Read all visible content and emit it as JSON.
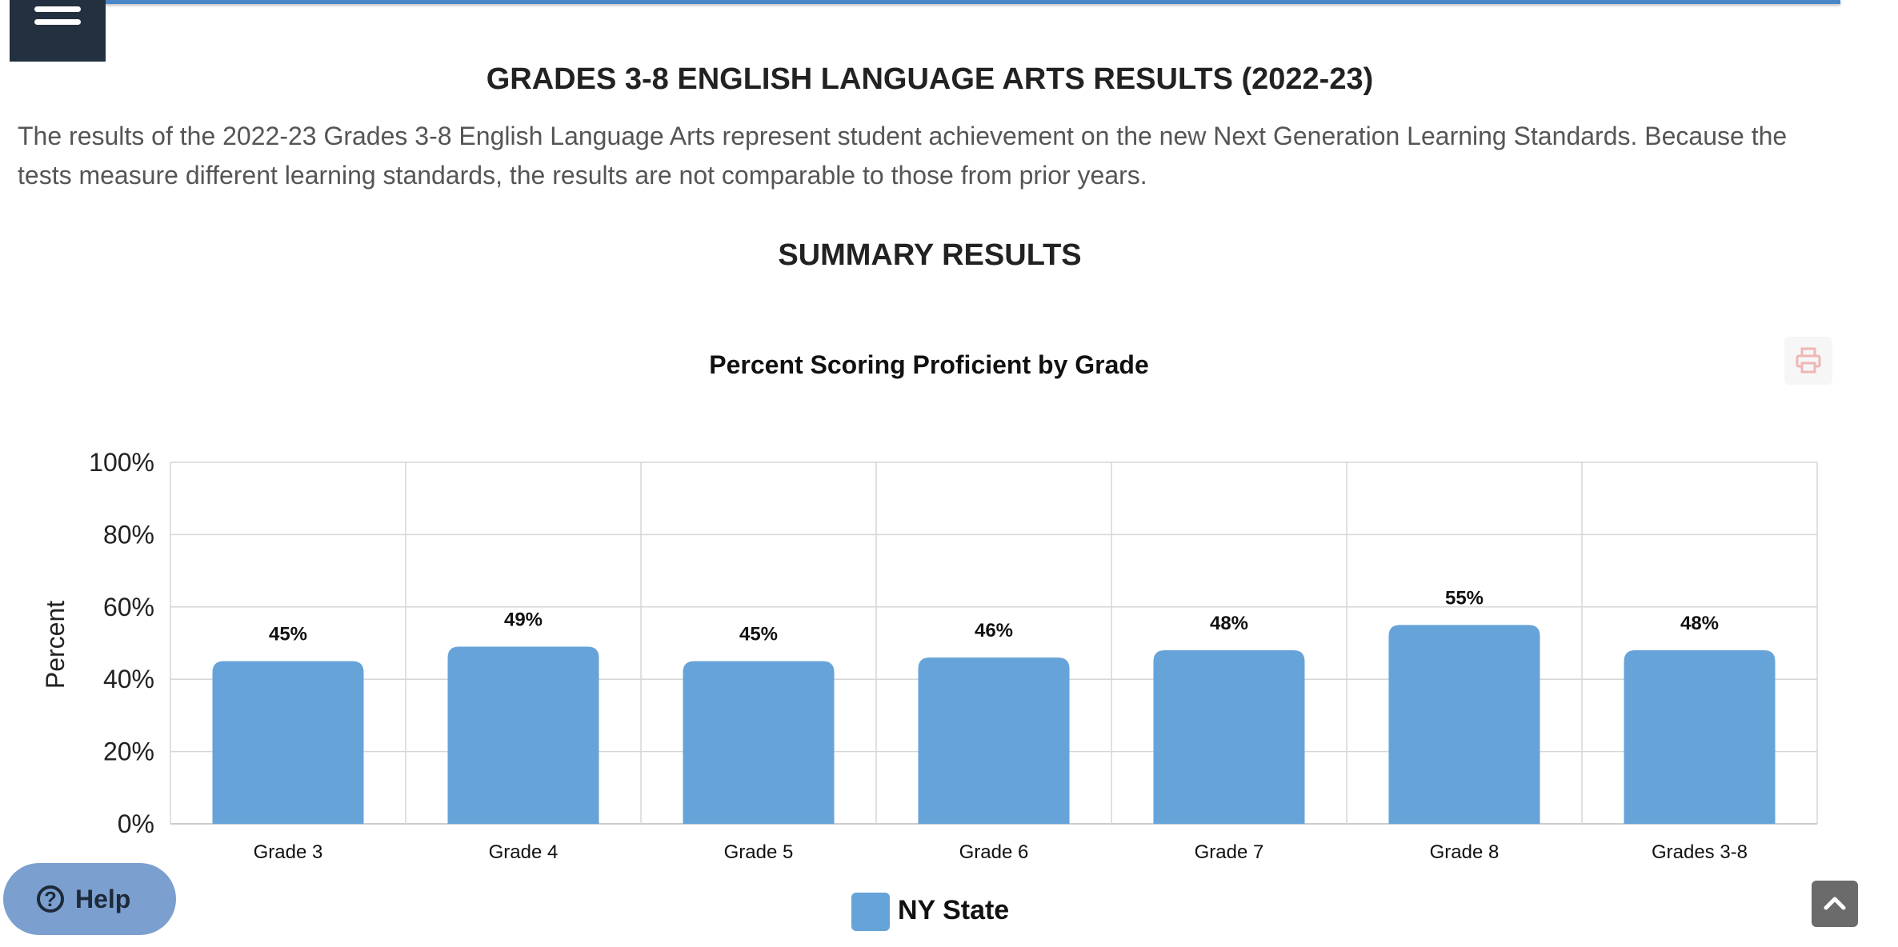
{
  "header": {
    "menu_icon": "hamburger-icon",
    "title": "GRADES 3-8 ENGLISH LANGUAGE ARTS RESULTS (2022-23)"
  },
  "intro": {
    "text": "The results of the 2022-23 Grades 3-8 English Language Arts represent student achievement on the new Next Generation Learning Standards. Because the tests measure different learning standards, the results are not comparable to those from prior years."
  },
  "summary": {
    "title": "SUMMARY RESULTS"
  },
  "toolbar": {
    "print_icon": "printer-icon"
  },
  "chart_data": {
    "type": "bar",
    "title": "Percent Scoring Proficient by Grade",
    "xlabel": "",
    "ylabel": "Percent",
    "ylim": [
      0,
      100
    ],
    "yticks": [
      0,
      20,
      40,
      60,
      80,
      100
    ],
    "ytick_labels": [
      "0%",
      "20%",
      "40%",
      "60%",
      "80%",
      "100%"
    ],
    "categories": [
      "Grade 3",
      "Grade 4",
      "Grade 5",
      "Grade 6",
      "Grade 7",
      "Grade 8",
      "Grades 3-8"
    ],
    "series": [
      {
        "name": "NY State",
        "color": "#66a3d9",
        "values": [
          45,
          49,
          45,
          46,
          48,
          55,
          48
        ],
        "labels": [
          "45%",
          "49%",
          "45%",
          "46%",
          "48%",
          "55%",
          "48%"
        ]
      }
    ],
    "grid": true,
    "legend_position": "bottom-center"
  },
  "help": {
    "label": "Help",
    "icon": "help-circle-icon"
  },
  "scroll_top": {
    "icon": "chevron-up-icon"
  }
}
